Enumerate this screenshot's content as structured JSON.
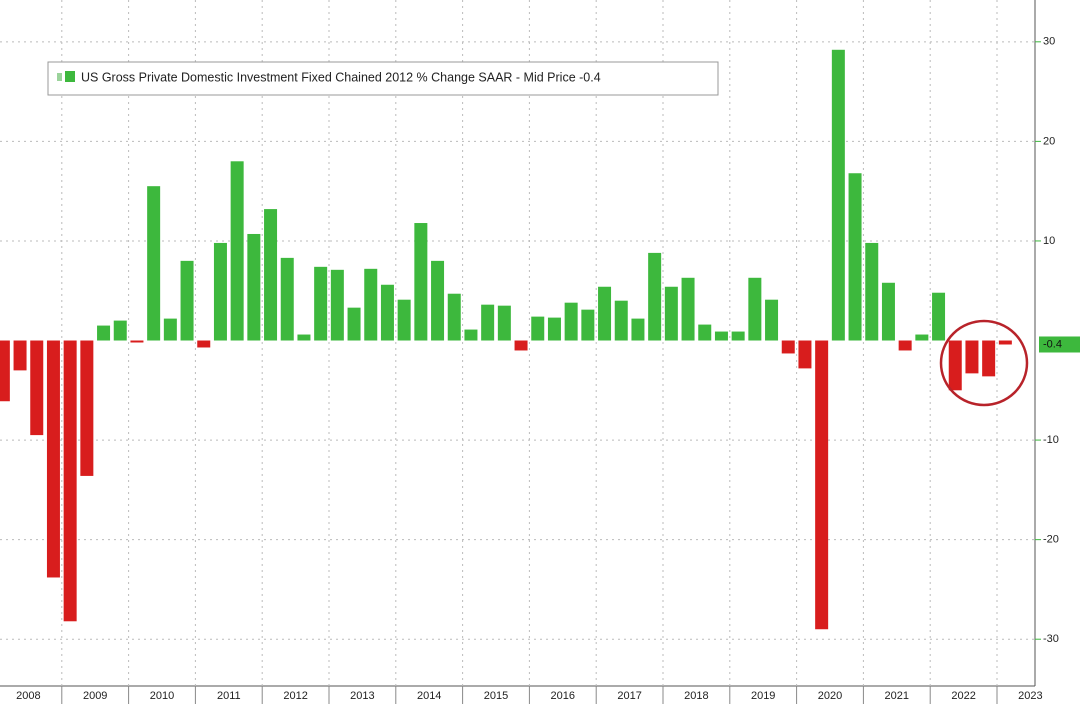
{
  "chart_data": {
    "type": "bar",
    "legend": "US Gross Private Domestic Investment Fixed Chained 2012 % Change SAAR - Mid Price -0.4",
    "year_labels": [
      "2008",
      "2009",
      "2010",
      "2011",
      "2012",
      "2013",
      "2014",
      "2015",
      "2016",
      "2017",
      "2018",
      "2019",
      "2020",
      "2021",
      "2022",
      "2023"
    ],
    "values": [
      -6.1,
      -3,
      -9.5,
      -23.8,
      -28.2,
      -13.6,
      1.5,
      2,
      -0.2,
      15.5,
      2.2,
      8,
      -0.7,
      9.8,
      18,
      10.7,
      13.2,
      8.3,
      0.6,
      7.4,
      7.1,
      3.3,
      7.2,
      5.6,
      4.1,
      11.8,
      8,
      4.7,
      1.1,
      3.6,
      3.5,
      -1,
      2.4,
      2.3,
      3.8,
      3.1,
      5.4,
      4,
      2.2,
      8.8,
      5.4,
      6.3,
      1.6,
      0.9,
      0.9,
      6.3,
      4.1,
      -1.3,
      -2.8,
      -29,
      29.2,
      16.8,
      9.8,
      5.8,
      -1,
      0.6,
      4.8,
      -5,
      -3.3,
      -3.6,
      -0.4
    ],
    "positive_color": "#3db83d",
    "negative_color": "#d81d1d",
    "ylim": [
      -34.7,
      34.2
    ],
    "yticks": [
      -30,
      -20,
      -10,
      10,
      20,
      30
    ],
    "grid": true
  }
}
